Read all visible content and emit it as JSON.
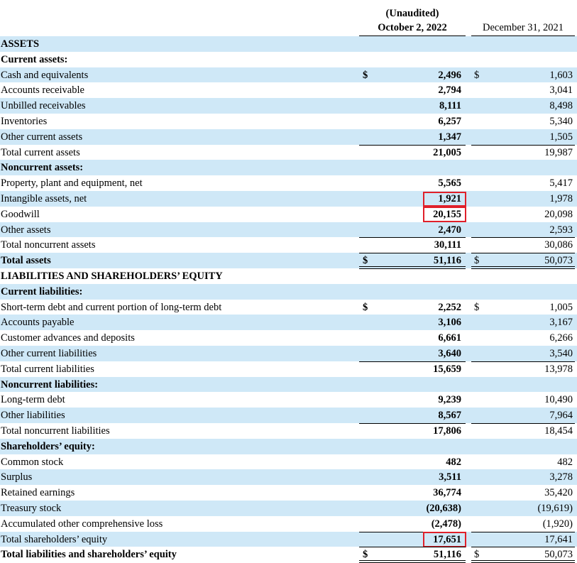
{
  "header": {
    "unaudited": "(Unaudited)",
    "current_period": "October 2, 2022",
    "prior_period": "December 31, 2021"
  },
  "rows": [
    {
      "label": "ASSETS"
    },
    {
      "label": "Current assets:"
    },
    {
      "label": "Cash and equivalents",
      "current_sign": "$",
      "current": "2,496",
      "prior_sign": "$",
      "prior": "1,603"
    },
    {
      "label": "Accounts receivable",
      "current": "2,794",
      "prior": "3,041"
    },
    {
      "label": "Unbilled receivables",
      "current": "8,111",
      "prior": "8,498"
    },
    {
      "label": "Inventories",
      "current": "6,257",
      "prior": "5,340"
    },
    {
      "label": "Other current assets",
      "current": "1,347",
      "prior": "1,505"
    },
    {
      "label": "Total current assets",
      "current": "21,005",
      "prior": "19,987"
    },
    {
      "label": "Noncurrent assets:"
    },
    {
      "label": "Property, plant and equipment, net",
      "current": "5,565",
      "prior": "5,417"
    },
    {
      "label": "Intangible assets, net",
      "current": "1,921",
      "prior": "1,978"
    },
    {
      "label": "Goodwill",
      "current": "20,155",
      "prior": "20,098"
    },
    {
      "label": "Other assets",
      "current": "2,470",
      "prior": "2,593"
    },
    {
      "label": "Total noncurrent assets",
      "current": "30,111",
      "prior": "30,086"
    },
    {
      "label": "Total assets",
      "current_sign": "$",
      "current": "51,116",
      "prior_sign": "$",
      "prior": "50,073"
    },
    {
      "label": "LIABILITIES AND SHAREHOLDERS’ EQUITY"
    },
    {
      "label": "Current liabilities:"
    },
    {
      "label": "Short-term debt and current portion of long-term debt",
      "current_sign": "$",
      "current": "2,252",
      "prior_sign": "$",
      "prior": "1,005"
    },
    {
      "label": "Accounts payable",
      "current": "3,106",
      "prior": "3,167"
    },
    {
      "label": "Customer advances and deposits",
      "current": "6,661",
      "prior": "6,266"
    },
    {
      "label": "Other current liabilities",
      "current": "3,640",
      "prior": "3,540"
    },
    {
      "label": "Total current liabilities",
      "current": "15,659",
      "prior": "13,978"
    },
    {
      "label": "Noncurrent liabilities:"
    },
    {
      "label": "Long-term debt",
      "current": "9,239",
      "prior": "10,490"
    },
    {
      "label": "Other liabilities",
      "current": "8,567",
      "prior": "7,964"
    },
    {
      "label": "Total noncurrent liabilities",
      "current": "17,806",
      "prior": "18,454"
    },
    {
      "label": "Shareholders’ equity:"
    },
    {
      "label": "Common stock",
      "current": "482",
      "prior": "482"
    },
    {
      "label": "Surplus",
      "current": "3,511",
      "prior": "3,278"
    },
    {
      "label": "Retained earnings",
      "current": "36,774",
      "prior": "35,420"
    },
    {
      "label": "Treasury stock",
      "current": "(20,638)",
      "prior": "(19,619)"
    },
    {
      "label": "Accumulated other comprehensive loss",
      "current": "(2,478)",
      "prior": "(1,920)"
    },
    {
      "label": "Total shareholders’ equity",
      "current": "17,651",
      "prior": "17,641"
    },
    {
      "label": "Total liabilities and shareholders’ equity",
      "current_sign": "$",
      "current": "51,116",
      "prior_sign": "$",
      "prior": "50,073"
    }
  ]
}
